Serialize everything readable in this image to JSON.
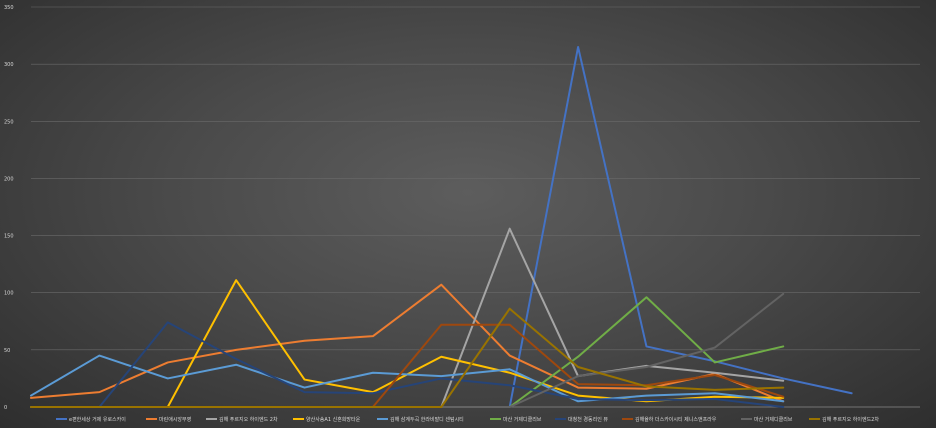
{
  "chart_data": {
    "type": "line",
    "title": "",
    "xlabel": "",
    "ylabel": "",
    "ylim": [
      0,
      350
    ],
    "yticks": [
      "0",
      "50",
      "100",
      "150",
      "200",
      "250",
      "300",
      "350"
    ],
    "grid": true,
    "legend_position": "bottom",
    "x_count": 14,
    "series": [
      {
        "name": "e편한세상 거제 유로스카이",
        "color": "#4472c4",
        "values": [
          0,
          0,
          0,
          0,
          0,
          0,
          0,
          0,
          315,
          53,
          40,
          25,
          12
        ]
      },
      {
        "name": "마린애시앙부영",
        "color": "#ed7d31",
        "values": [
          8,
          13,
          39,
          50,
          58,
          62,
          107,
          45,
          17,
          16,
          29,
          5
        ]
      },
      {
        "name": "김해 푸르지오 하이엔드 2차",
        "color": "#a5a5a5",
        "values": [
          0,
          0,
          0,
          0,
          0,
          0,
          0,
          156,
          27,
          36,
          30,
          23
        ]
      },
      {
        "name": "양산사송A1 신혼희망타운",
        "color": "#ffc000",
        "values": [
          0,
          0,
          0,
          111,
          24,
          13,
          44,
          30,
          10,
          5,
          9,
          8
        ]
      },
      {
        "name": "김해 삼계두곡 한라비발디 센텀시티",
        "color": "#5b9bd5",
        "values": [
          10,
          45,
          25,
          37,
          17,
          30,
          27,
          33,
          5,
          10,
          12,
          5
        ]
      },
      {
        "name": "마산 거제디클리브",
        "color": "#70ad47",
        "values": [
          0,
          0,
          0,
          0,
          0,
          0,
          0,
          0,
          44,
          96,
          39,
          53
        ]
      },
      {
        "name": "대청천 경동리인 뷰",
        "color": "#264478",
        "values": [
          0,
          0,
          74,
          42,
          13,
          12,
          25,
          19,
          7,
          6,
          7,
          0
        ]
      },
      {
        "name": "김해율하 더스카이시티 제니스앤프라우",
        "color": "#9e480e",
        "values": [
          0,
          0,
          0,
          0,
          0,
          0,
          72,
          72,
          20,
          19,
          28,
          9
        ]
      },
      {
        "name": "마산 거제디클리브",
        "color": "#636363",
        "values": [
          0,
          0,
          0,
          0,
          0,
          0,
          0,
          0,
          27,
          35,
          52,
          99
        ]
      },
      {
        "name": "김해 푸르지오 하이엔드2차",
        "color": "#997300",
        "values": [
          0,
          0,
          0,
          0,
          0,
          0,
          0,
          86,
          35,
          18,
          15,
          17
        ]
      }
    ]
  }
}
